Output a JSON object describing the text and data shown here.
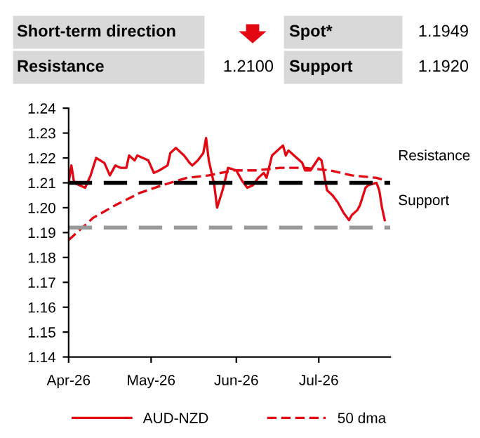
{
  "chart_data": {
    "type": "line",
    "annotations": [
      "Short-term direction",
      "Spot*",
      "1.1949",
      "Resistance",
      "1.2100",
      "Support",
      "1.1920"
    ],
    "series": [
      {
        "name": "AUD-NZD",
        "color": "#e30613",
        "line_style": "solid",
        "x": [
          "2026-04-01",
          "2026-04-02",
          "2026-04-03",
          "2026-04-05",
          "2026-04-07",
          "2026-04-09",
          "2026-04-11",
          "2026-04-14",
          "2026-04-16",
          "2026-04-18",
          "2026-04-20",
          "2026-04-22",
          "2026-04-23",
          "2026-04-25",
          "2026-04-26",
          "2026-04-28",
          "2026-04-30",
          "2026-05-02",
          "2026-05-04",
          "2026-05-07",
          "2026-05-08",
          "2026-05-10",
          "2026-05-13",
          "2026-05-15",
          "2026-05-16",
          "2026-05-18",
          "2026-05-20",
          "2026-05-21",
          "2026-05-22",
          "2026-05-24",
          "2026-05-25",
          "2026-05-27",
          "2026-05-29",
          "2026-06-01",
          "2026-06-03",
          "2026-06-05",
          "2026-06-07",
          "2026-06-09",
          "2026-06-11",
          "2026-06-12",
          "2026-06-14",
          "2026-06-17",
          "2026-06-18",
          "2026-06-19",
          "2026-06-20",
          "2026-06-22",
          "2026-06-25",
          "2026-06-26",
          "2026-06-28",
          "2026-07-01",
          "2026-07-02",
          "2026-07-04",
          "2026-07-06",
          "2026-07-08",
          "2026-07-10",
          "2026-07-12",
          "2026-07-13",
          "2026-07-15",
          "2026-07-16",
          "2026-07-18",
          "2026-07-19",
          "2026-07-22",
          "2026-07-23",
          "2026-07-24",
          "2026-07-25"
        ],
        "values": [
          1.21,
          1.217,
          1.21,
          1.209,
          1.208,
          1.213,
          1.22,
          1.218,
          1.213,
          1.217,
          1.216,
          1.216,
          1.221,
          1.219,
          1.221,
          1.22,
          1.219,
          1.214,
          1.215,
          1.217,
          1.222,
          1.224,
          1.221,
          1.218,
          1.217,
          1.219,
          1.222,
          1.228,
          1.219,
          1.209,
          1.2,
          1.207,
          1.216,
          1.215,
          1.211,
          1.208,
          1.209,
          1.212,
          1.214,
          1.212,
          1.221,
          1.224,
          1.225,
          1.221,
          1.223,
          1.221,
          1.218,
          1.215,
          1.215,
          1.22,
          1.219,
          1.207,
          1.205,
          1.202,
          1.198,
          1.195,
          1.197,
          1.199,
          1.201,
          1.208,
          1.209,
          1.21,
          1.207,
          1.2,
          1.195
        ]
      },
      {
        "name": "50 dma",
        "color": "#e30613",
        "line_style": "dashed",
        "x": [
          "2026-04-01",
          "2026-04-04",
          "2026-04-10",
          "2026-04-18",
          "2026-04-27",
          "2026-05-05",
          "2026-05-14",
          "2026-05-22",
          "2026-05-31",
          "2026-06-08",
          "2026-06-17",
          "2026-06-26",
          "2026-07-05",
          "2026-07-13",
          "2026-07-22",
          "2026-07-25"
        ],
        "values": [
          1.187,
          1.19,
          1.196,
          1.201,
          1.206,
          1.209,
          1.212,
          1.213,
          1.215,
          1.215,
          1.216,
          1.216,
          1.215,
          1.213,
          1.212,
          1.211
        ]
      }
    ],
    "ref_lines": [
      {
        "axis": "y",
        "value": 1.21,
        "label": "Resistance",
        "color": "#000000",
        "line_style": "dashed"
      },
      {
        "axis": "y",
        "value": 1.192,
        "label": "Support",
        "color": "#999999",
        "line_style": "dashed"
      }
    ],
    "xlim": [
      "2026-04-01",
      "2026-07-27"
    ],
    "xticks": [
      {
        "value": "2026-04-01",
        "label": "Apr-26"
      },
      {
        "value": "2026-05-01",
        "label": "May-26"
      },
      {
        "value": "2026-06-01",
        "label": "Jun-26"
      },
      {
        "value": "2026-07-01",
        "label": "Jul-26"
      }
    ],
    "ylim": [
      1.14,
      1.24
    ],
    "yticks": [
      {
        "value": 1.14,
        "label": "1.14"
      },
      {
        "value": 1.15,
        "label": "1.15"
      },
      {
        "value": 1.16,
        "label": "1.16"
      },
      {
        "value": 1.17,
        "label": "1.17"
      },
      {
        "value": 1.18,
        "label": "1.18"
      },
      {
        "value": 1.19,
        "label": "1.19"
      },
      {
        "value": 1.2,
        "label": "1.20"
      },
      {
        "value": 1.21,
        "label": "1.21"
      },
      {
        "value": 1.22,
        "label": "1.22"
      },
      {
        "value": 1.23,
        "label": "1.23"
      },
      {
        "value": 1.24,
        "label": "1.24"
      }
    ],
    "grid": false,
    "legend": "bottom"
  }
}
